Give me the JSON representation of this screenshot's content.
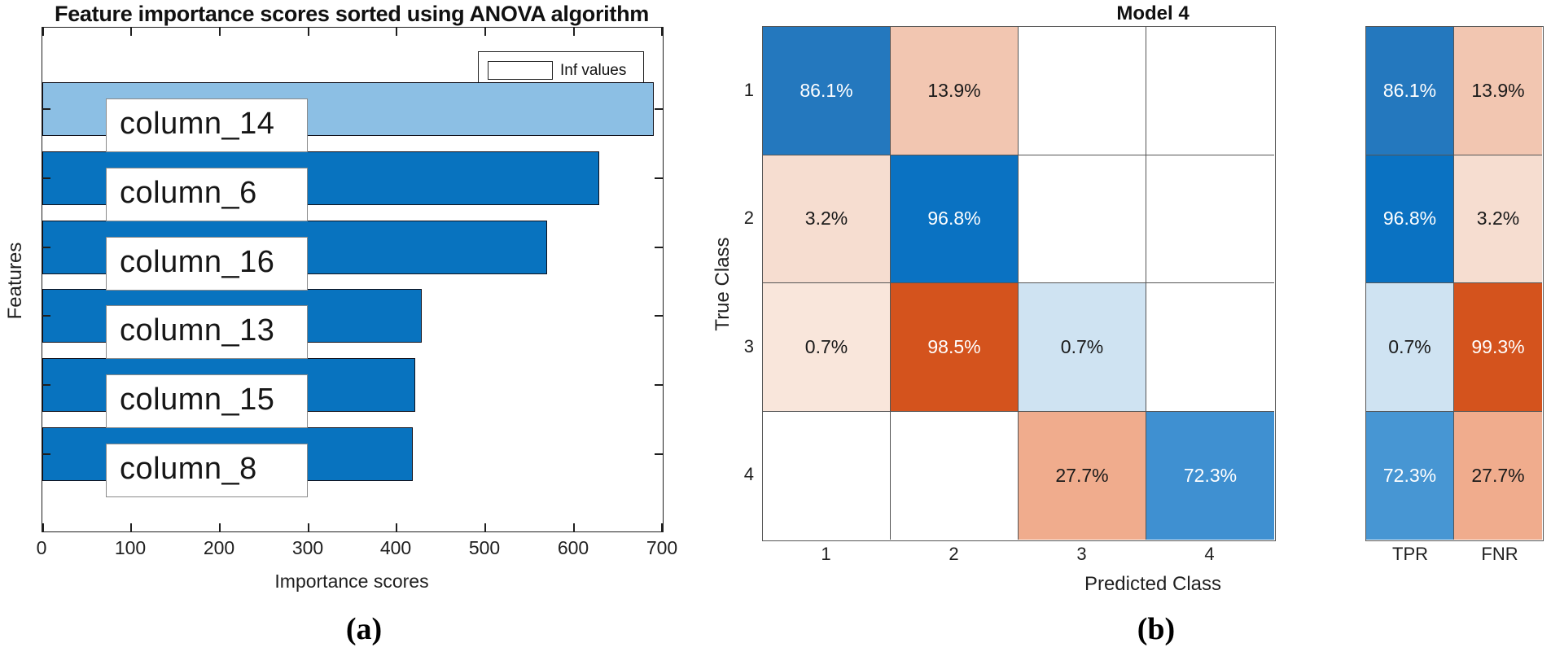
{
  "figure": {
    "background": "#ffffff",
    "panels": [
      "a",
      "b"
    ]
  },
  "chart_data": [
    {
      "type": "bar",
      "orientation": "horizontal",
      "title": "Feature importance scores sorted using ANOVA algorithm",
      "xlabel": "Importance scores",
      "ylabel": "Features",
      "panel_label": "(a)",
      "legend": [
        "Inf values"
      ],
      "legend_position": "top-right",
      "categories": [
        "column_14",
        "column_6",
        "column_16",
        "column_13",
        "column_15",
        "column_8"
      ],
      "values": [
        690,
        628,
        570,
        428,
        421,
        418
      ],
      "inf_flags": [
        true,
        false,
        false,
        false,
        false,
        false
      ],
      "note": "top bar (column_14) is drawn in light blue to mark Inf values",
      "xlim": [
        0,
        700
      ],
      "x_ticks": [
        0,
        100,
        200,
        300,
        400,
        500,
        600,
        700
      ],
      "grid": false,
      "colors": {
        "bar": "#0873BF",
        "inf_bar": "#8CBFE4",
        "bar_border": "#10101a",
        "axis": "#1f1f1f"
      }
    },
    {
      "type": "heatmap",
      "subtype": "confusion-matrix",
      "title": "Model 4",
      "xlabel": "Predicted Class",
      "ylabel": "True Class",
      "panel_label": "(b)",
      "row_labels": [
        "1",
        "2",
        "3",
        "4"
      ],
      "col_labels": [
        "1",
        "2",
        "3",
        "4"
      ],
      "values": [
        [
          86.1,
          13.9,
          null,
          null
        ],
        [
          3.2,
          96.8,
          null,
          null
        ],
        [
          0.7,
          98.5,
          0.7,
          null
        ],
        [
          null,
          null,
          27.7,
          72.3
        ]
      ],
      "unit": "%",
      "cell_colors": [
        [
          "#2478BE",
          "#F2C6B1",
          "#FFFFFF",
          "#FFFFFF"
        ],
        [
          "#F6DDD0",
          "#0A72C2",
          "#FFFFFF",
          "#FFFFFF"
        ],
        [
          "#F9E6DB",
          "#D4531D",
          "#CFE3F2",
          "#FFFFFF"
        ],
        [
          "#FFFFFF",
          "#FFFFFF",
          "#F0AC8D",
          "#3F90D1"
        ]
      ],
      "cell_text_colors": [
        [
          "#ffffff",
          "#1a1a1a",
          "",
          ""
        ],
        [
          "#1a1a1a",
          "#ffffff",
          "",
          ""
        ],
        [
          "#1a1a1a",
          "#ffffff",
          "#1a1a1a",
          ""
        ],
        [
          "",
          "",
          "#1a1a1a",
          "#ffffff"
        ]
      ],
      "summary": {
        "col_labels": [
          "TPR",
          "FNR"
        ],
        "values": [
          [
            86.1,
            13.9
          ],
          [
            96.8,
            3.2
          ],
          [
            0.7,
            99.3
          ],
          [
            72.3,
            27.7
          ]
        ],
        "cell_colors": [
          [
            "#2478BE",
            "#F2C6B1"
          ],
          [
            "#0A72C2",
            "#F6DDD0"
          ],
          [
            "#CFE3F2",
            "#D4531D"
          ],
          [
            "#4796D3",
            "#F0AC8D"
          ]
        ],
        "cell_text_colors": [
          [
            "#ffffff",
            "#1a1a1a"
          ],
          [
            "#ffffff",
            "#1a1a1a"
          ],
          [
            "#1a1a1a",
            "#ffffff"
          ],
          [
            "#ffffff",
            "#1a1a1a"
          ]
        ]
      },
      "grid_color": "#555555"
    }
  ]
}
